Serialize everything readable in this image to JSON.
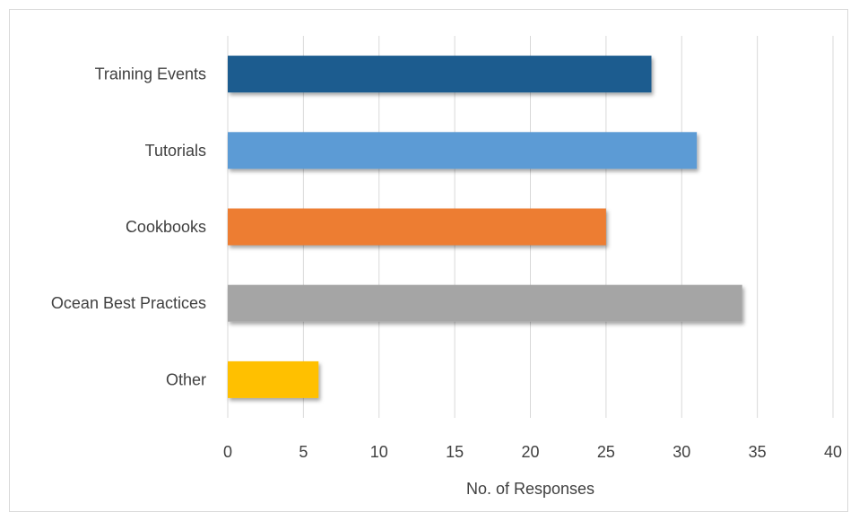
{
  "chart_data": {
    "type": "bar",
    "orientation": "horizontal",
    "categories": [
      "Training Events",
      "Tutorials",
      "Cookbooks",
      "Ocean Best Practices",
      "Other"
    ],
    "values": [
      28,
      31,
      25,
      34,
      6
    ],
    "colors": [
      "#1b5c8f",
      "#5b9bd5",
      "#ed7d31",
      "#a5a5a5",
      "#ffc000"
    ],
    "xlabel": "No. of Responses",
    "ylabel": "",
    "title": "",
    "xlim": [
      0,
      40
    ],
    "xticks": [
      0,
      5,
      10,
      15,
      20,
      25,
      30,
      35,
      40
    ],
    "grid": "vertical",
    "legend": "none"
  }
}
